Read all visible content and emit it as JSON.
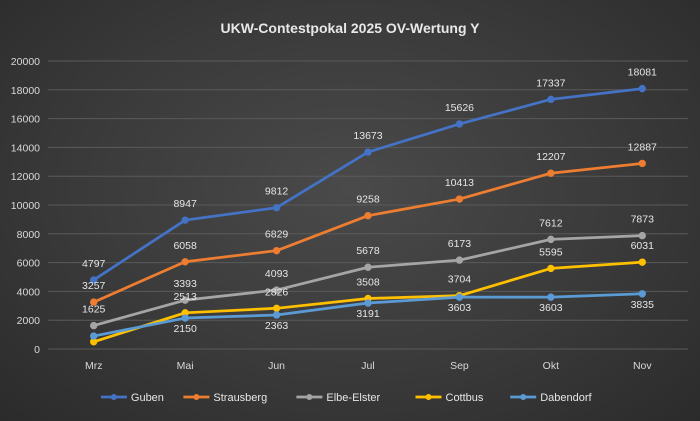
{
  "chart_data": {
    "type": "line",
    "title": "UKW-Contestpokal 2025 OV-Wertung Y",
    "xlabel": "",
    "ylabel": "",
    "categories": [
      "Mrz",
      "Mai",
      "Jun",
      "Jul",
      "Sep",
      "Okt",
      "Nov"
    ],
    "ylim": [
      0,
      20000
    ],
    "yticks": [
      "0",
      "2000",
      "4000",
      "6000",
      "8000",
      "10000",
      "12000",
      "14000",
      "16000",
      "18000",
      "20000"
    ],
    "grid": true,
    "legend_position": "bottom",
    "series": [
      {
        "name": "Guben",
        "color": "#4472c4",
        "values": [
          4797,
          8947,
          9812,
          13673,
          15626,
          17337,
          18081
        ]
      },
      {
        "name": "Strausberg",
        "color": "#ed7d31",
        "values": [
          3257,
          6058,
          6829,
          9258,
          10413,
          12207,
          12887
        ]
      },
      {
        "name": "Elbe-Elster",
        "color": "#a5a5a5",
        "values": [
          1625,
          3393,
          4093,
          5678,
          6173,
          7612,
          7873
        ]
      },
      {
        "name": "Cottbus",
        "color": "#ffc000",
        "values": [
          500,
          2513,
          2826,
          3508,
          3704,
          5595,
          6031
        ]
      },
      {
        "name": "Dabendorf",
        "color": "#5b9bd5",
        "values": [
          900,
          2150,
          2363,
          3191,
          3603,
          3603,
          3835
        ]
      }
    ],
    "data_labels": [
      {
        "series": "Guben",
        "index": 0,
        "text": "4797"
      },
      {
        "series": "Guben",
        "index": 1,
        "text": "8947"
      },
      {
        "series": "Guben",
        "index": 2,
        "text": "9812"
      },
      {
        "series": "Guben",
        "index": 3,
        "text": "13673"
      },
      {
        "series": "Guben",
        "index": 4,
        "text": "15626"
      },
      {
        "series": "Guben",
        "index": 5,
        "text": "17337"
      },
      {
        "series": "Guben",
        "index": 6,
        "text": "18081"
      },
      {
        "series": "Strausberg",
        "index": 0,
        "text": "3257"
      },
      {
        "series": "Strausberg",
        "index": 1,
        "text": "6058"
      },
      {
        "series": "Strausberg",
        "index": 2,
        "text": "6829"
      },
      {
        "series": "Strausberg",
        "index": 3,
        "text": "9258"
      },
      {
        "series": "Strausberg",
        "index": 4,
        "text": "10413"
      },
      {
        "series": "Strausberg",
        "index": 5,
        "text": "12207"
      },
      {
        "series": "Strausberg",
        "index": 6,
        "text": "12887"
      },
      {
        "series": "Elbe-Elster",
        "index": 0,
        "text": "1625"
      },
      {
        "series": "Elbe-Elster",
        "index": 1,
        "text": "3393"
      },
      {
        "series": "Elbe-Elster",
        "index": 2,
        "text": "4093"
      },
      {
        "series": "Elbe-Elster",
        "index": 3,
        "text": "5678"
      },
      {
        "series": "Elbe-Elster",
        "index": 4,
        "text": "6173"
      },
      {
        "series": "Elbe-Elster",
        "index": 5,
        "text": "7612"
      },
      {
        "series": "Elbe-Elster",
        "index": 6,
        "text": "7873"
      },
      {
        "series": "Cottbus",
        "index": 1,
        "text": "2513"
      },
      {
        "series": "Cottbus",
        "index": 2,
        "text": "2826"
      },
      {
        "series": "Cottbus",
        "index": 3,
        "text": "3508"
      },
      {
        "series": "Cottbus",
        "index": 4,
        "text": "3704"
      },
      {
        "series": "Cottbus",
        "index": 5,
        "text": "5595"
      },
      {
        "series": "Cottbus",
        "index": 6,
        "text": "6031"
      },
      {
        "series": "Dabendorf",
        "index": 1,
        "text": "2150"
      },
      {
        "series": "Dabendorf",
        "index": 2,
        "text": "2363"
      },
      {
        "series": "Dabendorf",
        "index": 3,
        "text": "3191"
      },
      {
        "series": "Dabendorf",
        "index": 4,
        "text": "3603"
      },
      {
        "series": "Dabendorf",
        "index": 5,
        "text": "3603"
      },
      {
        "series": "Dabendorf",
        "index": 6,
        "text": "3835"
      }
    ]
  }
}
